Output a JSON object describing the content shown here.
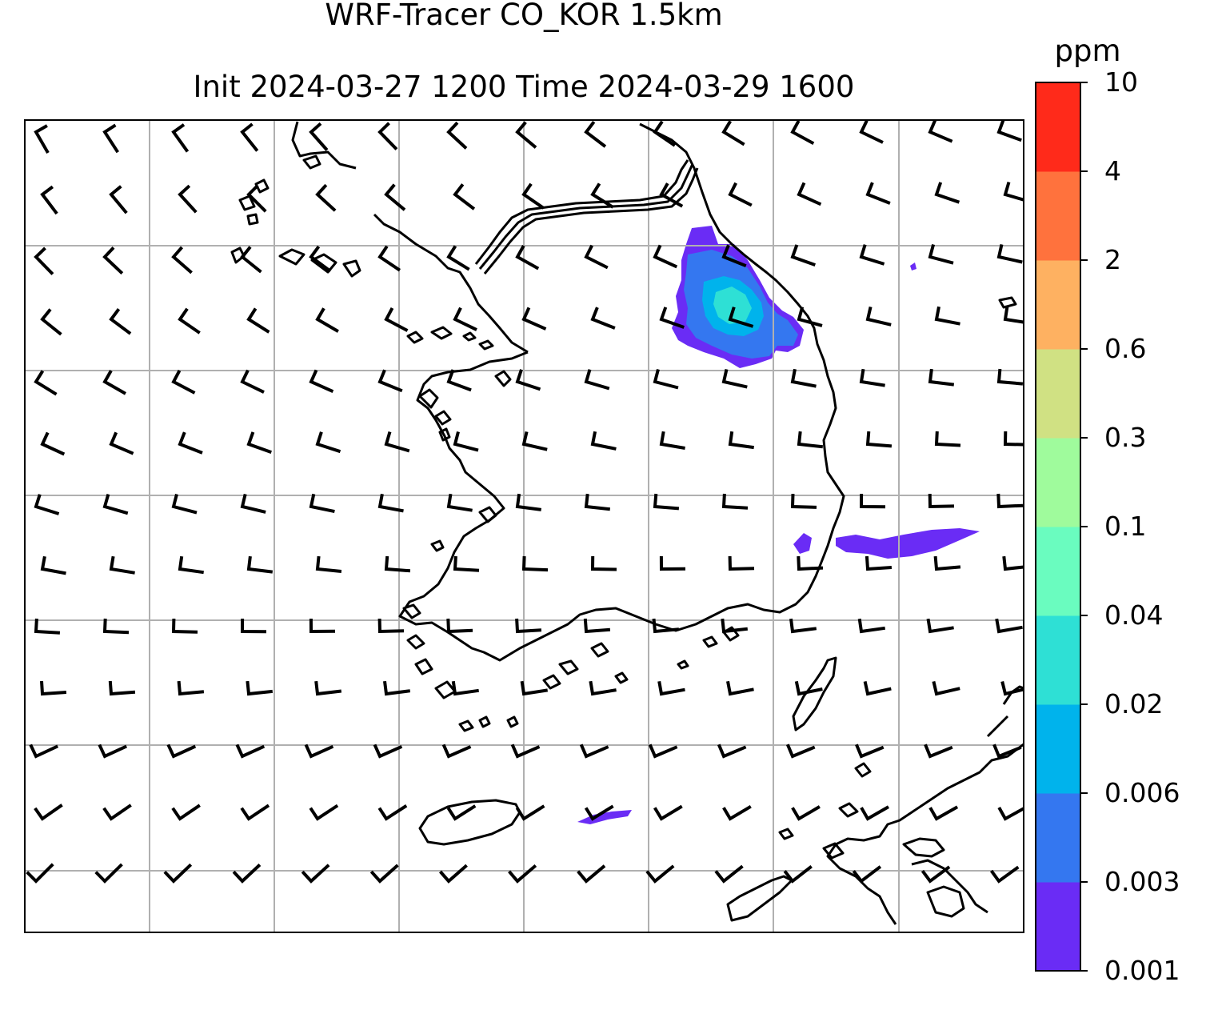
{
  "title": {
    "line1": "WRF-Tracer CO_KOR 1.5km",
    "line2": "Init 2024-03-27 1200 Time 2024-03-29 1600"
  },
  "colorbar": {
    "unit": "ppm",
    "levels": [
      "0.001",
      "0.003",
      "0.006",
      "0.02",
      "0.04",
      "0.1",
      "0.3",
      "0.6",
      "2",
      "4",
      "10"
    ],
    "colors": [
      "#6a2cf5",
      "#3477f0",
      "#00b3ec",
      "#2ee0d5",
      "#6afcbf",
      "#9ffb9c",
      "#d0e183",
      "#feb161",
      "#ff723d",
      "#ff2a1a"
    ]
  },
  "map": {
    "background": "#ffffff",
    "gridline_color": "#b0b0b0",
    "coastline_color": "#000000",
    "wind_barb_color": "#000000",
    "tracer_regions": [
      {
        "name": "northeast-plume",
        "peak_level": "0.02"
      },
      {
        "name": "east-sea-plume",
        "peak_level": "0.001"
      },
      {
        "name": "south-sea-plume",
        "peak_level": "0.001"
      }
    ]
  }
}
